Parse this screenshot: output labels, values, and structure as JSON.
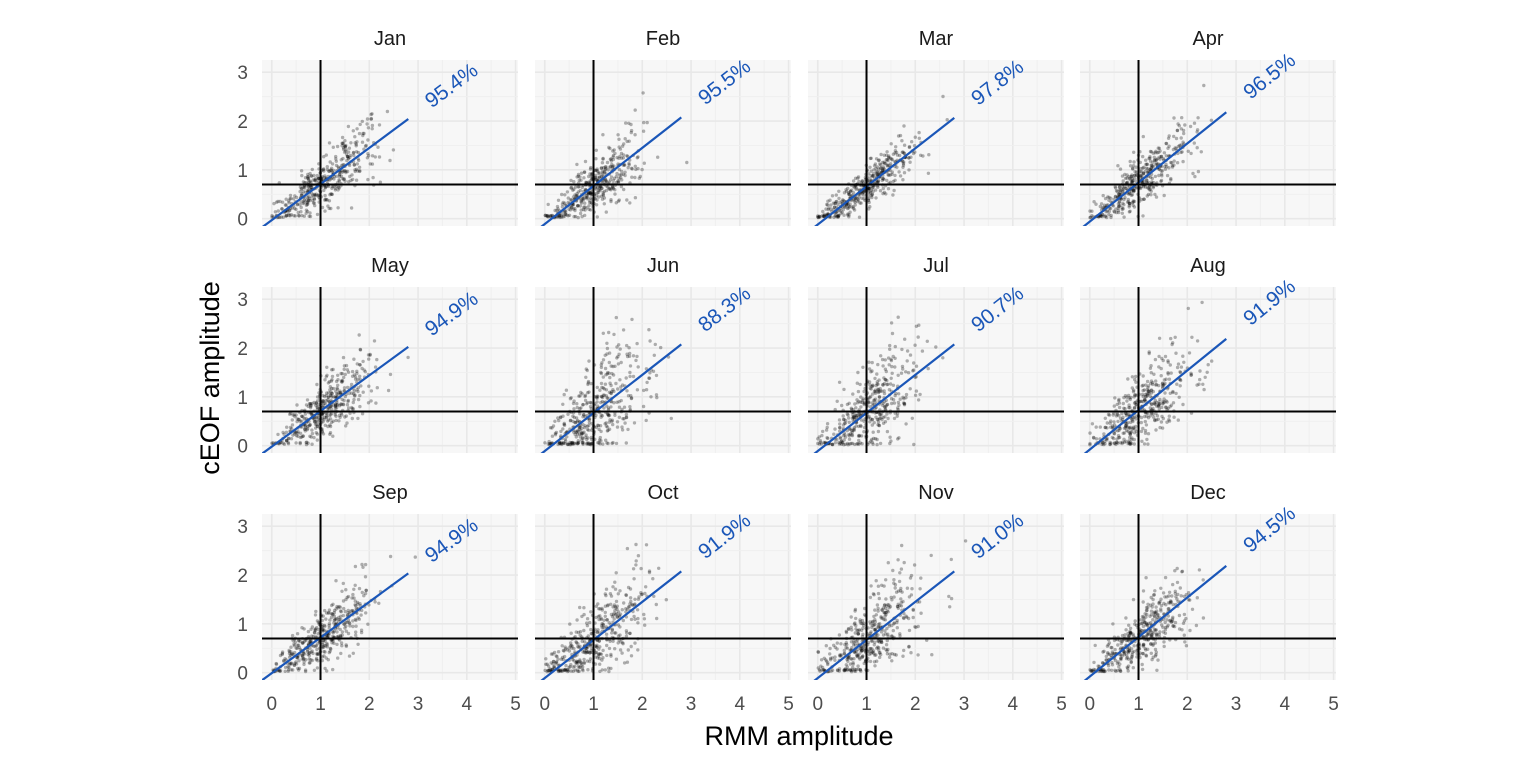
{
  "chart_data": {
    "type": "scatter",
    "xlabel": "RMM amplitude",
    "ylabel": "cEOF amplitude",
    "xlim": [
      -0.2,
      5.05
    ],
    "ylim": [
      -0.15,
      3.25
    ],
    "x_ticks": [
      "0",
      "1",
      "2",
      "3",
      "4",
      "5"
    ],
    "y_ticks": [
      "0",
      "1",
      "2",
      "3"
    ],
    "reference_lines": {
      "vertical_x": 1,
      "horizontal_y": 0.7
    },
    "grid": true,
    "colors": {
      "points": "#000000",
      "fit_line": "#1a56b8",
      "reference": "#000000",
      "panel_bg": "#f7f7f7"
    },
    "panels": [
      {
        "name": "Jan",
        "label": "95.4%",
        "slope": 0.74,
        "intercept": -0.03
      },
      {
        "name": "Feb",
        "label": "95.5%",
        "slope": 0.78,
        "intercept": -0.11
      },
      {
        "name": "Mar",
        "label": "97.8%",
        "slope": 0.78,
        "intercept": -0.12
      },
      {
        "name": "Apr",
        "label": "96.5%",
        "slope": 0.8,
        "intercept": -0.06
      },
      {
        "name": "May",
        "label": "94.9%",
        "slope": 0.73,
        "intercept": -0.02
      },
      {
        "name": "Jun",
        "label": "88.3%",
        "slope": 0.78,
        "intercept": -0.11
      },
      {
        "name": "Jul",
        "label": "90.7%",
        "slope": 0.78,
        "intercept": -0.11
      },
      {
        "name": "Aug",
        "label": "91.9%",
        "slope": 0.81,
        "intercept": -0.08
      },
      {
        "name": "Sep",
        "label": "94.9%",
        "slope": 0.73,
        "intercept": -0.01
      },
      {
        "name": "Oct",
        "label": "91.9%",
        "slope": 0.78,
        "intercept": -0.11
      },
      {
        "name": "Nov",
        "label": "91.0%",
        "slope": 0.78,
        "intercept": -0.11
      },
      {
        "name": "Dec",
        "label": "94.5%",
        "slope": 0.81,
        "intercept": -0.08
      }
    ]
  }
}
